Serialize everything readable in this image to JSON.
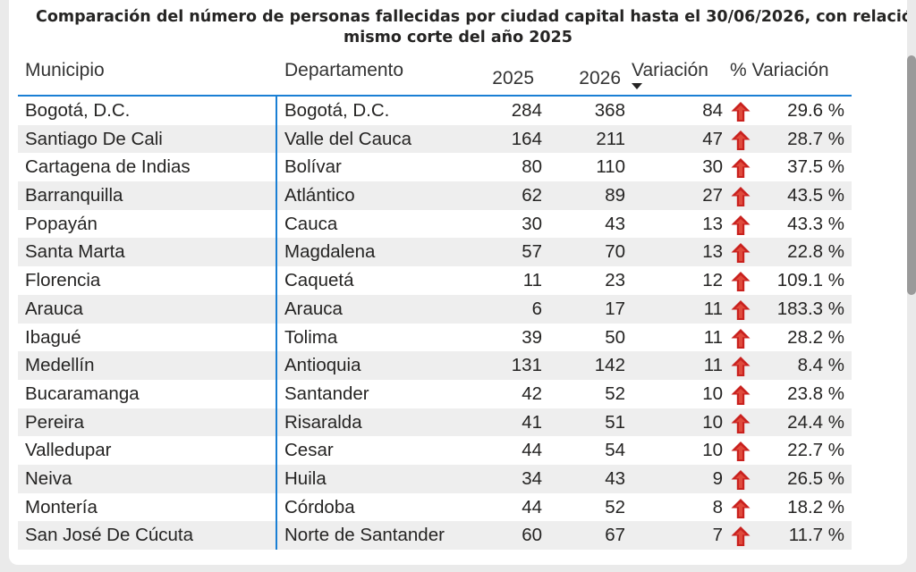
{
  "title": {
    "line1": "Comparación del número de personas fallecidas por ciudad capital hasta el 30/06/2026, con relación al",
    "line2": "mismo corte del año 2025"
  },
  "colors": {
    "accent_line": "#1a7fd4",
    "up_arrow": "#c9211e",
    "row_alt": "#eeeeee"
  },
  "table": {
    "columns": {
      "municipio": "Municipio",
      "departamento": "Departamento",
      "y2025": "2025",
      "y2026": "2026",
      "variacion": "Variación",
      "pct_variacion": "% Variación"
    },
    "sort": {
      "column": "variacion",
      "direction": "descending",
      "icon": "sort-descending-icon"
    },
    "trend_icon": "arrow-up-icon",
    "rows": [
      {
        "municipio": "Bogotá, D.C.",
        "departamento": "Bogotá, D.C.",
        "y2025": "284",
        "y2026": "368",
        "variacion": "84",
        "pct": "29.6 %"
      },
      {
        "municipio": "Santiago De Cali",
        "departamento": "Valle del Cauca",
        "y2025": "164",
        "y2026": "211",
        "variacion": "47",
        "pct": "28.7 %"
      },
      {
        "municipio": "Cartagena de Indias",
        "departamento": "Bolívar",
        "y2025": "80",
        "y2026": "110",
        "variacion": "30",
        "pct": "37.5 %"
      },
      {
        "municipio": "Barranquilla",
        "departamento": "Atlántico",
        "y2025": "62",
        "y2026": "89",
        "variacion": "27",
        "pct": "43.5 %"
      },
      {
        "municipio": "Popayán",
        "departamento": "Cauca",
        "y2025": "30",
        "y2026": "43",
        "variacion": "13",
        "pct": "43.3 %"
      },
      {
        "municipio": "Santa Marta",
        "departamento": "Magdalena",
        "y2025": "57",
        "y2026": "70",
        "variacion": "13",
        "pct": "22.8 %"
      },
      {
        "municipio": "Florencia",
        "departamento": "Caquetá",
        "y2025": "11",
        "y2026": "23",
        "variacion": "12",
        "pct": "109.1 %"
      },
      {
        "municipio": "Arauca",
        "departamento": "Arauca",
        "y2025": "6",
        "y2026": "17",
        "variacion": "11",
        "pct": "183.3 %"
      },
      {
        "municipio": "Ibagué",
        "departamento": "Tolima",
        "y2025": "39",
        "y2026": "50",
        "variacion": "11",
        "pct": "28.2 %"
      },
      {
        "municipio": "Medellín",
        "departamento": "Antioquia",
        "y2025": "131",
        "y2026": "142",
        "variacion": "11",
        "pct": "8.4 %"
      },
      {
        "municipio": "Bucaramanga",
        "departamento": "Santander",
        "y2025": "42",
        "y2026": "52",
        "variacion": "10",
        "pct": "23.8 %"
      },
      {
        "municipio": "Pereira",
        "departamento": "Risaralda",
        "y2025": "41",
        "y2026": "51",
        "variacion": "10",
        "pct": "24.4 %"
      },
      {
        "municipio": "Valledupar",
        "departamento": "Cesar",
        "y2025": "44",
        "y2026": "54",
        "variacion": "10",
        "pct": "22.7 %"
      },
      {
        "municipio": "Neiva",
        "departamento": "Huila",
        "y2025": "34",
        "y2026": "43",
        "variacion": "9",
        "pct": "26.5 %"
      },
      {
        "municipio": "Montería",
        "departamento": "Córdoba",
        "y2025": "44",
        "y2026": "52",
        "variacion": "8",
        "pct": "18.2 %"
      },
      {
        "municipio": "San José De Cúcuta",
        "departamento": "Norte de Santander",
        "y2025": "60",
        "y2026": "67",
        "variacion": "7",
        "pct": "11.7 %"
      }
    ]
  }
}
